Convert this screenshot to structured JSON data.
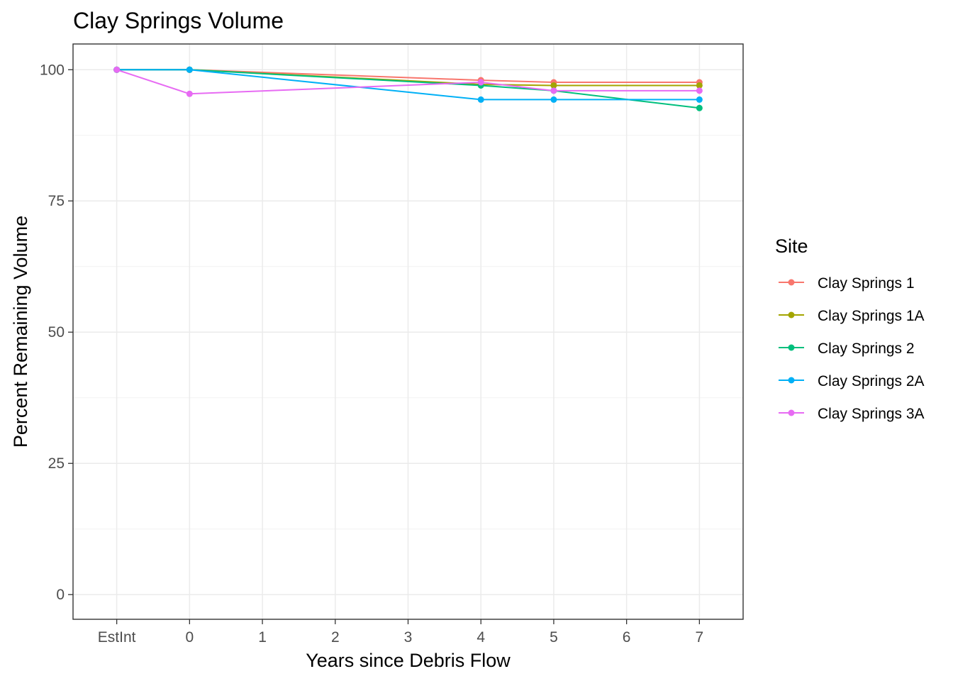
{
  "chart_data": {
    "type": "line",
    "title": "Clay Springs Volume",
    "xlabel": "Years since Debris Flow",
    "ylabel": "Percent Remaining Volume",
    "x_ticks": [
      "EstInt",
      "0",
      "1",
      "2",
      "3",
      "4",
      "5",
      "6",
      "7"
    ],
    "x_tick_values": [
      -1,
      0,
      1,
      2,
      3,
      4,
      5,
      6,
      7
    ],
    "xlim": [
      -1.6,
      7.6
    ],
    "y_ticks": [
      0,
      25,
      50,
      75,
      100
    ],
    "ylim": [
      -4.7,
      104.9
    ],
    "grid": true,
    "legend": {
      "title": "Site",
      "position": "right"
    },
    "series": [
      {
        "name": "Clay Springs 1",
        "color": "#F8766D",
        "points": [
          [
            -1,
            100
          ],
          [
            0,
            100
          ],
          [
            4,
            98.0
          ],
          [
            5,
            97.6
          ],
          [
            7,
            97.6
          ]
        ]
      },
      {
        "name": "Clay Springs 1A",
        "color": "#A3A500",
        "points": [
          [
            -1,
            100
          ],
          [
            0,
            100
          ],
          [
            4,
            97.2
          ],
          [
            5,
            97.0
          ],
          [
            7,
            97.0
          ]
        ]
      },
      {
        "name": "Clay Springs 2",
        "color": "#00BF7D",
        "points": [
          [
            -1,
            100
          ],
          [
            0,
            100
          ],
          [
            4,
            97.0
          ],
          [
            5,
            96.0
          ],
          [
            7,
            92.7
          ]
        ]
      },
      {
        "name": "Clay Springs 2A",
        "color": "#00B0F6",
        "points": [
          [
            -1,
            100
          ],
          [
            0,
            100
          ],
          [
            4,
            94.3
          ],
          [
            5,
            94.3
          ],
          [
            7,
            94.3
          ]
        ]
      },
      {
        "name": "Clay Springs 3A",
        "color": "#E76BF3",
        "points": [
          [
            -1,
            100
          ],
          [
            0,
            95.4
          ],
          [
            4,
            97.6
          ],
          [
            5,
            96.0
          ],
          [
            7,
            96.0
          ]
        ]
      }
    ]
  }
}
